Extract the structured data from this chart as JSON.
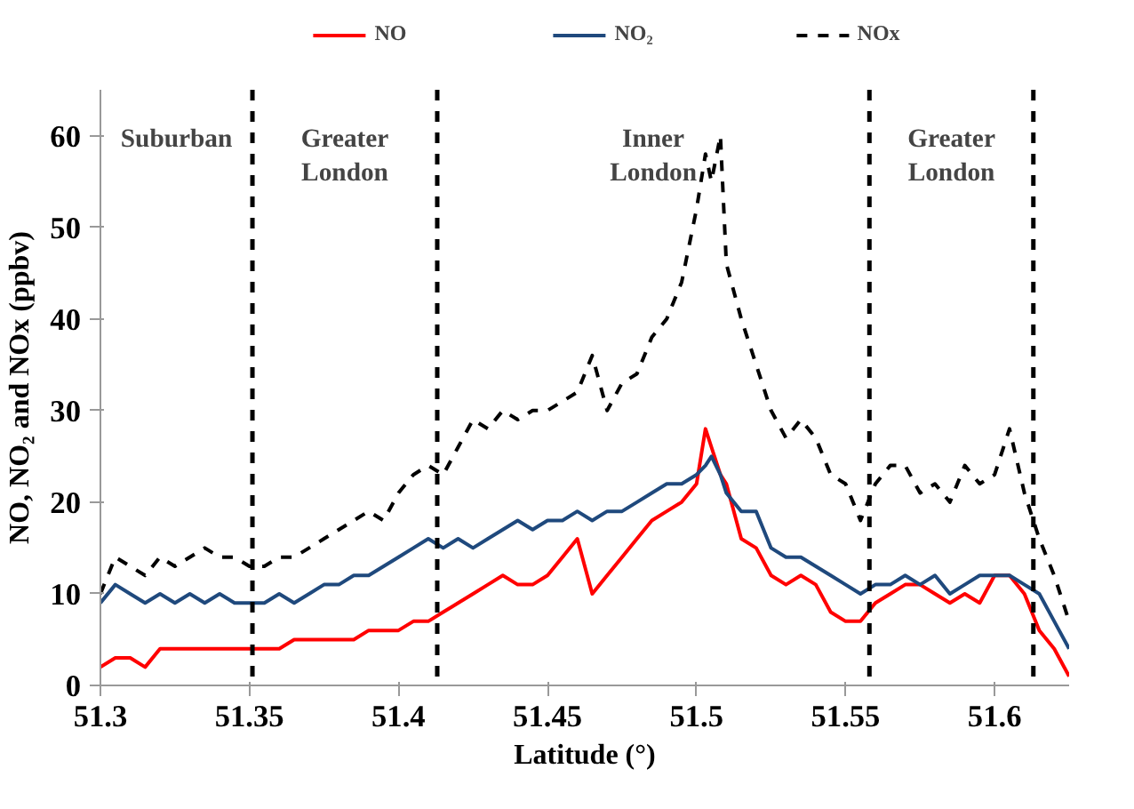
{
  "chart_data": {
    "type": "line",
    "xlabel": "Latitude (°)",
    "ylabel": "NO, NO₂ and NOx (ppbv)",
    "x": [
      51.3,
      51.305,
      51.31,
      51.315,
      51.32,
      51.325,
      51.33,
      51.335,
      51.34,
      51.345,
      51.35,
      51.355,
      51.36,
      51.365,
      51.37,
      51.375,
      51.38,
      51.385,
      51.39,
      51.395,
      51.4,
      51.405,
      51.41,
      51.415,
      51.42,
      51.425,
      51.43,
      51.435,
      51.44,
      51.445,
      51.45,
      51.455,
      51.46,
      51.465,
      51.47,
      51.475,
      51.48,
      51.485,
      51.49,
      51.495,
      51.5,
      51.503,
      51.505,
      51.508,
      51.51,
      51.515,
      51.52,
      51.525,
      51.53,
      51.535,
      51.54,
      51.545,
      51.55,
      51.555,
      51.56,
      51.565,
      51.57,
      51.575,
      51.58,
      51.585,
      51.59,
      51.595,
      51.6,
      51.605,
      51.61,
      51.615,
      51.62,
      51.625
    ],
    "series": [
      {
        "name": "NO",
        "color": "#ff0000",
        "line_style": "solid",
        "values": [
          2,
          3,
          3,
          2,
          4,
          4,
          4,
          4,
          4,
          4,
          4,
          4,
          4,
          5,
          5,
          5,
          5,
          5,
          6,
          6,
          6,
          7,
          7,
          8,
          9,
          10,
          11,
          12,
          11,
          11,
          12,
          14,
          16,
          10,
          12,
          14,
          16,
          18,
          19,
          20,
          22,
          28,
          26,
          23,
          22,
          16,
          15,
          12,
          11,
          12,
          11,
          8,
          7,
          7,
          9,
          10,
          11,
          11,
          10,
          9,
          10,
          9,
          12,
          12,
          10,
          6,
          4,
          1
        ]
      },
      {
        "name": "NO₂",
        "color": "#1f497d",
        "line_style": "solid",
        "values": [
          9,
          11,
          10,
          9,
          10,
          9,
          10,
          9,
          10,
          9,
          9,
          9,
          10,
          9,
          10,
          11,
          11,
          12,
          12,
          13,
          14,
          15,
          16,
          15,
          16,
          15,
          16,
          17,
          18,
          17,
          18,
          18,
          19,
          18,
          19,
          19,
          20,
          21,
          22,
          22,
          23,
          24,
          25,
          23,
          21,
          19,
          19,
          15,
          14,
          14,
          13,
          12,
          11,
          10,
          11,
          11,
          12,
          11,
          12,
          10,
          11,
          12,
          12,
          12,
          11,
          10,
          7,
          4
        ]
      },
      {
        "name": "NOx",
        "color": "#000000",
        "line_style": "dashed",
        "values": [
          10,
          14,
          13,
          12,
          14,
          13,
          14,
          15,
          14,
          14,
          13,
          13,
          14,
          14,
          15,
          16,
          17,
          18,
          19,
          18,
          21,
          23,
          24,
          23,
          26,
          29,
          28,
          30,
          29,
          30,
          30,
          31,
          32,
          36,
          30,
          33,
          34,
          38,
          40,
          44,
          52,
          58,
          55,
          60,
          46,
          40,
          35,
          30,
          27,
          29,
          27,
          23,
          22,
          18,
          22,
          24,
          24,
          21,
          22,
          20,
          24,
          22,
          23,
          28,
          21,
          16,
          12,
          7
        ]
      }
    ],
    "xlim": [
      51.3,
      51.625
    ],
    "ylim": [
      0,
      65
    ],
    "xticks": [
      51.3,
      51.35,
      51.4,
      51.45,
      51.5,
      51.55,
      51.6
    ],
    "yticks": [
      0,
      10,
      20,
      30,
      40,
      50,
      60
    ],
    "ref_lines": [
      {
        "axis": "x",
        "value": 51.351,
        "color": "#000000",
        "line_style": "dashed"
      },
      {
        "axis": "x",
        "value": 51.413,
        "color": "#000000",
        "line_style": "dashed"
      },
      {
        "axis": "x",
        "value": 51.558,
        "color": "#000000",
        "line_style": "dashed"
      },
      {
        "axis": "x",
        "value": 51.613,
        "color": "#000000",
        "line_style": "dashed"
      }
    ],
    "annotations": [
      "Suburban",
      "Greater\nLondon",
      "Inner\nLondon",
      "Greater\nLondon"
    ],
    "grid": false,
    "legend": "top"
  }
}
